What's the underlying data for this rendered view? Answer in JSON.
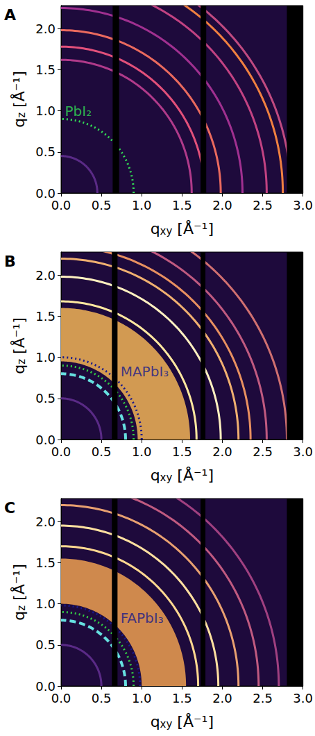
{
  "chart_data": [
    {
      "type": "rings",
      "panel": "A",
      "xlabel": {
        "symbol": "q",
        "sub": "xy",
        "unit": "[Å⁻¹]"
      },
      "ylabel": {
        "symbol": "q",
        "sub": "z",
        "unit": "[Å⁻¹]"
      },
      "xlim": [
        0,
        3.0
      ],
      "ylim": [
        0,
        2.28
      ],
      "xticks": [
        {
          "value": 0,
          "label": "0.0"
        },
        {
          "value": 0.5,
          "label": "0.5"
        },
        {
          "value": 1,
          "label": "1.0"
        },
        {
          "value": 1.5,
          "label": "1.5"
        },
        {
          "value": 2,
          "label": "2.0"
        },
        {
          "value": 2.5,
          "label": "2.5"
        },
        {
          "value": 3,
          "label": "3.0"
        }
      ],
      "yticks": [
        {
          "value": 0,
          "label": "0.0"
        },
        {
          "value": 0.5,
          "label": "0.5"
        },
        {
          "value": 1,
          "label": "1.0"
        },
        {
          "value": 1.5,
          "label": "1.5"
        },
        {
          "value": 2,
          "label": "2.0"
        }
      ],
      "bands": [],
      "rings": [
        {
          "q": 0.45,
          "color": "#5a2a86"
        },
        {
          "q": 1.62,
          "color": "#b03a8a"
        },
        {
          "q": 1.78,
          "color": "#e2507a"
        },
        {
          "q": 1.98,
          "color": "#ea6a5e"
        },
        {
          "q": 2.25,
          "color": "#a03090"
        },
        {
          "q": 2.55,
          "color": "#c24282"
        },
        {
          "q": 2.75,
          "color": "#f08040"
        },
        {
          "q": 2.85,
          "color": "#c04a80"
        }
      ],
      "annotations": [
        {
          "q": 0.9,
          "color": "#33dd55",
          "line_style": "dotted",
          "label": "PbI₂",
          "label_at": [
            0.03,
            1.0
          ]
        }
      ],
      "masked_qxy": [
        [
          0.64,
          0.72
        ],
        [
          1.73,
          1.8
        ],
        [
          2.8,
          3.0
        ]
      ]
    },
    {
      "type": "rings",
      "panel": "B",
      "xlabel": {
        "symbol": "q",
        "sub": "xy",
        "unit": "[Å⁻¹]"
      },
      "ylabel": {
        "symbol": "q",
        "sub": "z",
        "unit": "[Å⁻¹]"
      },
      "xlim": [
        0,
        3.0
      ],
      "ylim": [
        0,
        2.28
      ],
      "xticks": [
        {
          "value": 0,
          "label": "0.0"
        },
        {
          "value": 0.5,
          "label": "0.5"
        },
        {
          "value": 1,
          "label": "1.0"
        },
        {
          "value": 1.5,
          "label": "1.5"
        },
        {
          "value": 2,
          "label": "2.0"
        },
        {
          "value": 2.5,
          "label": "2.5"
        },
        {
          "value": 3,
          "label": "3.0"
        }
      ],
      "yticks": [
        {
          "value": 0,
          "label": "0.0"
        },
        {
          "value": 0.5,
          "label": "0.5"
        },
        {
          "value": 1,
          "label": "1.0"
        },
        {
          "value": 1.5,
          "label": "1.5"
        },
        {
          "value": 2,
          "label": "2.0"
        }
      ],
      "bands": [
        {
          "q_min": 0.95,
          "q_max": 1.6,
          "color": "#f2b456"
        }
      ],
      "rings": [
        {
          "q": 0.5,
          "color": "#5a2a86"
        },
        {
          "q": 1.68,
          "color": "#ffe8a0"
        },
        {
          "q": 1.98,
          "color": "#fff0c0"
        },
        {
          "q": 2.2,
          "color": "#f0b070"
        },
        {
          "q": 2.35,
          "color": "#e89060"
        },
        {
          "q": 2.55,
          "color": "#c05a80"
        },
        {
          "q": 2.8,
          "color": "#d07070"
        }
      ],
      "annotations": [
        {
          "q": 0.8,
          "color": "#66e0e0",
          "line_style": "dashed"
        },
        {
          "q": 0.9,
          "color": "#33cc44",
          "line_style": "dotted"
        },
        {
          "q": 1.0,
          "color": "#1a1a8a",
          "line_style": "dotted",
          "label": "MAPbI₃",
          "label_at": [
            0.72,
            0.83
          ]
        }
      ],
      "masked_qxy": [
        [
          0.63,
          0.7
        ],
        [
          1.73,
          1.79
        ],
        [
          2.8,
          3.0
        ]
      ]
    },
    {
      "type": "rings",
      "panel": "C",
      "xlabel": {
        "symbol": "q",
        "sub": "xy",
        "unit": "[Å⁻¹]"
      },
      "ylabel": {
        "symbol": "q",
        "sub": "z",
        "unit": "[Å⁻¹]"
      },
      "xlim": [
        0,
        3.0
      ],
      "ylim": [
        0,
        2.28
      ],
      "xticks": [
        {
          "value": 0,
          "label": "0.0"
        },
        {
          "value": 0.5,
          "label": "0.5"
        },
        {
          "value": 1,
          "label": "1.0"
        },
        {
          "value": 1.5,
          "label": "1.5"
        },
        {
          "value": 2,
          "label": "2.0"
        },
        {
          "value": 2.5,
          "label": "2.5"
        },
        {
          "value": 3,
          "label": "3.0"
        }
      ],
      "yticks": [
        {
          "value": 0,
          "label": "0.0"
        },
        {
          "value": 0.5,
          "label": "0.5"
        },
        {
          "value": 1,
          "label": "1.0"
        },
        {
          "value": 1.5,
          "label": "1.5"
        },
        {
          "value": 2,
          "label": "2.0"
        }
      ],
      "bands": [
        {
          "q_min": 1.0,
          "q_max": 1.55,
          "color": "#eea050"
        }
      ],
      "rings": [
        {
          "q": 0.5,
          "color": "#5a2a86"
        },
        {
          "q": 1.7,
          "color": "#ffd890"
        },
        {
          "q": 1.95,
          "color": "#ffe0a0"
        },
        {
          "q": 2.2,
          "color": "#e8a070"
        },
        {
          "q": 2.45,
          "color": "#c05a80"
        },
        {
          "q": 2.7,
          "color": "#a04080"
        }
      ],
      "annotations": [
        {
          "q": 0.8,
          "color": "#66e0e0",
          "line_style": "dashed"
        },
        {
          "q": 0.9,
          "color": "#33cc44",
          "line_style": "dotted"
        },
        {
          "q": 0.98,
          "color": "#1a1a8a",
          "line_style": "dotted",
          "label": "FAPbI₃",
          "label_at": [
            0.72,
            0.83
          ]
        }
      ],
      "masked_qxy": [
        [
          0.63,
          0.7
        ],
        [
          1.73,
          1.79
        ],
        [
          2.8,
          3.0
        ]
      ]
    }
  ]
}
